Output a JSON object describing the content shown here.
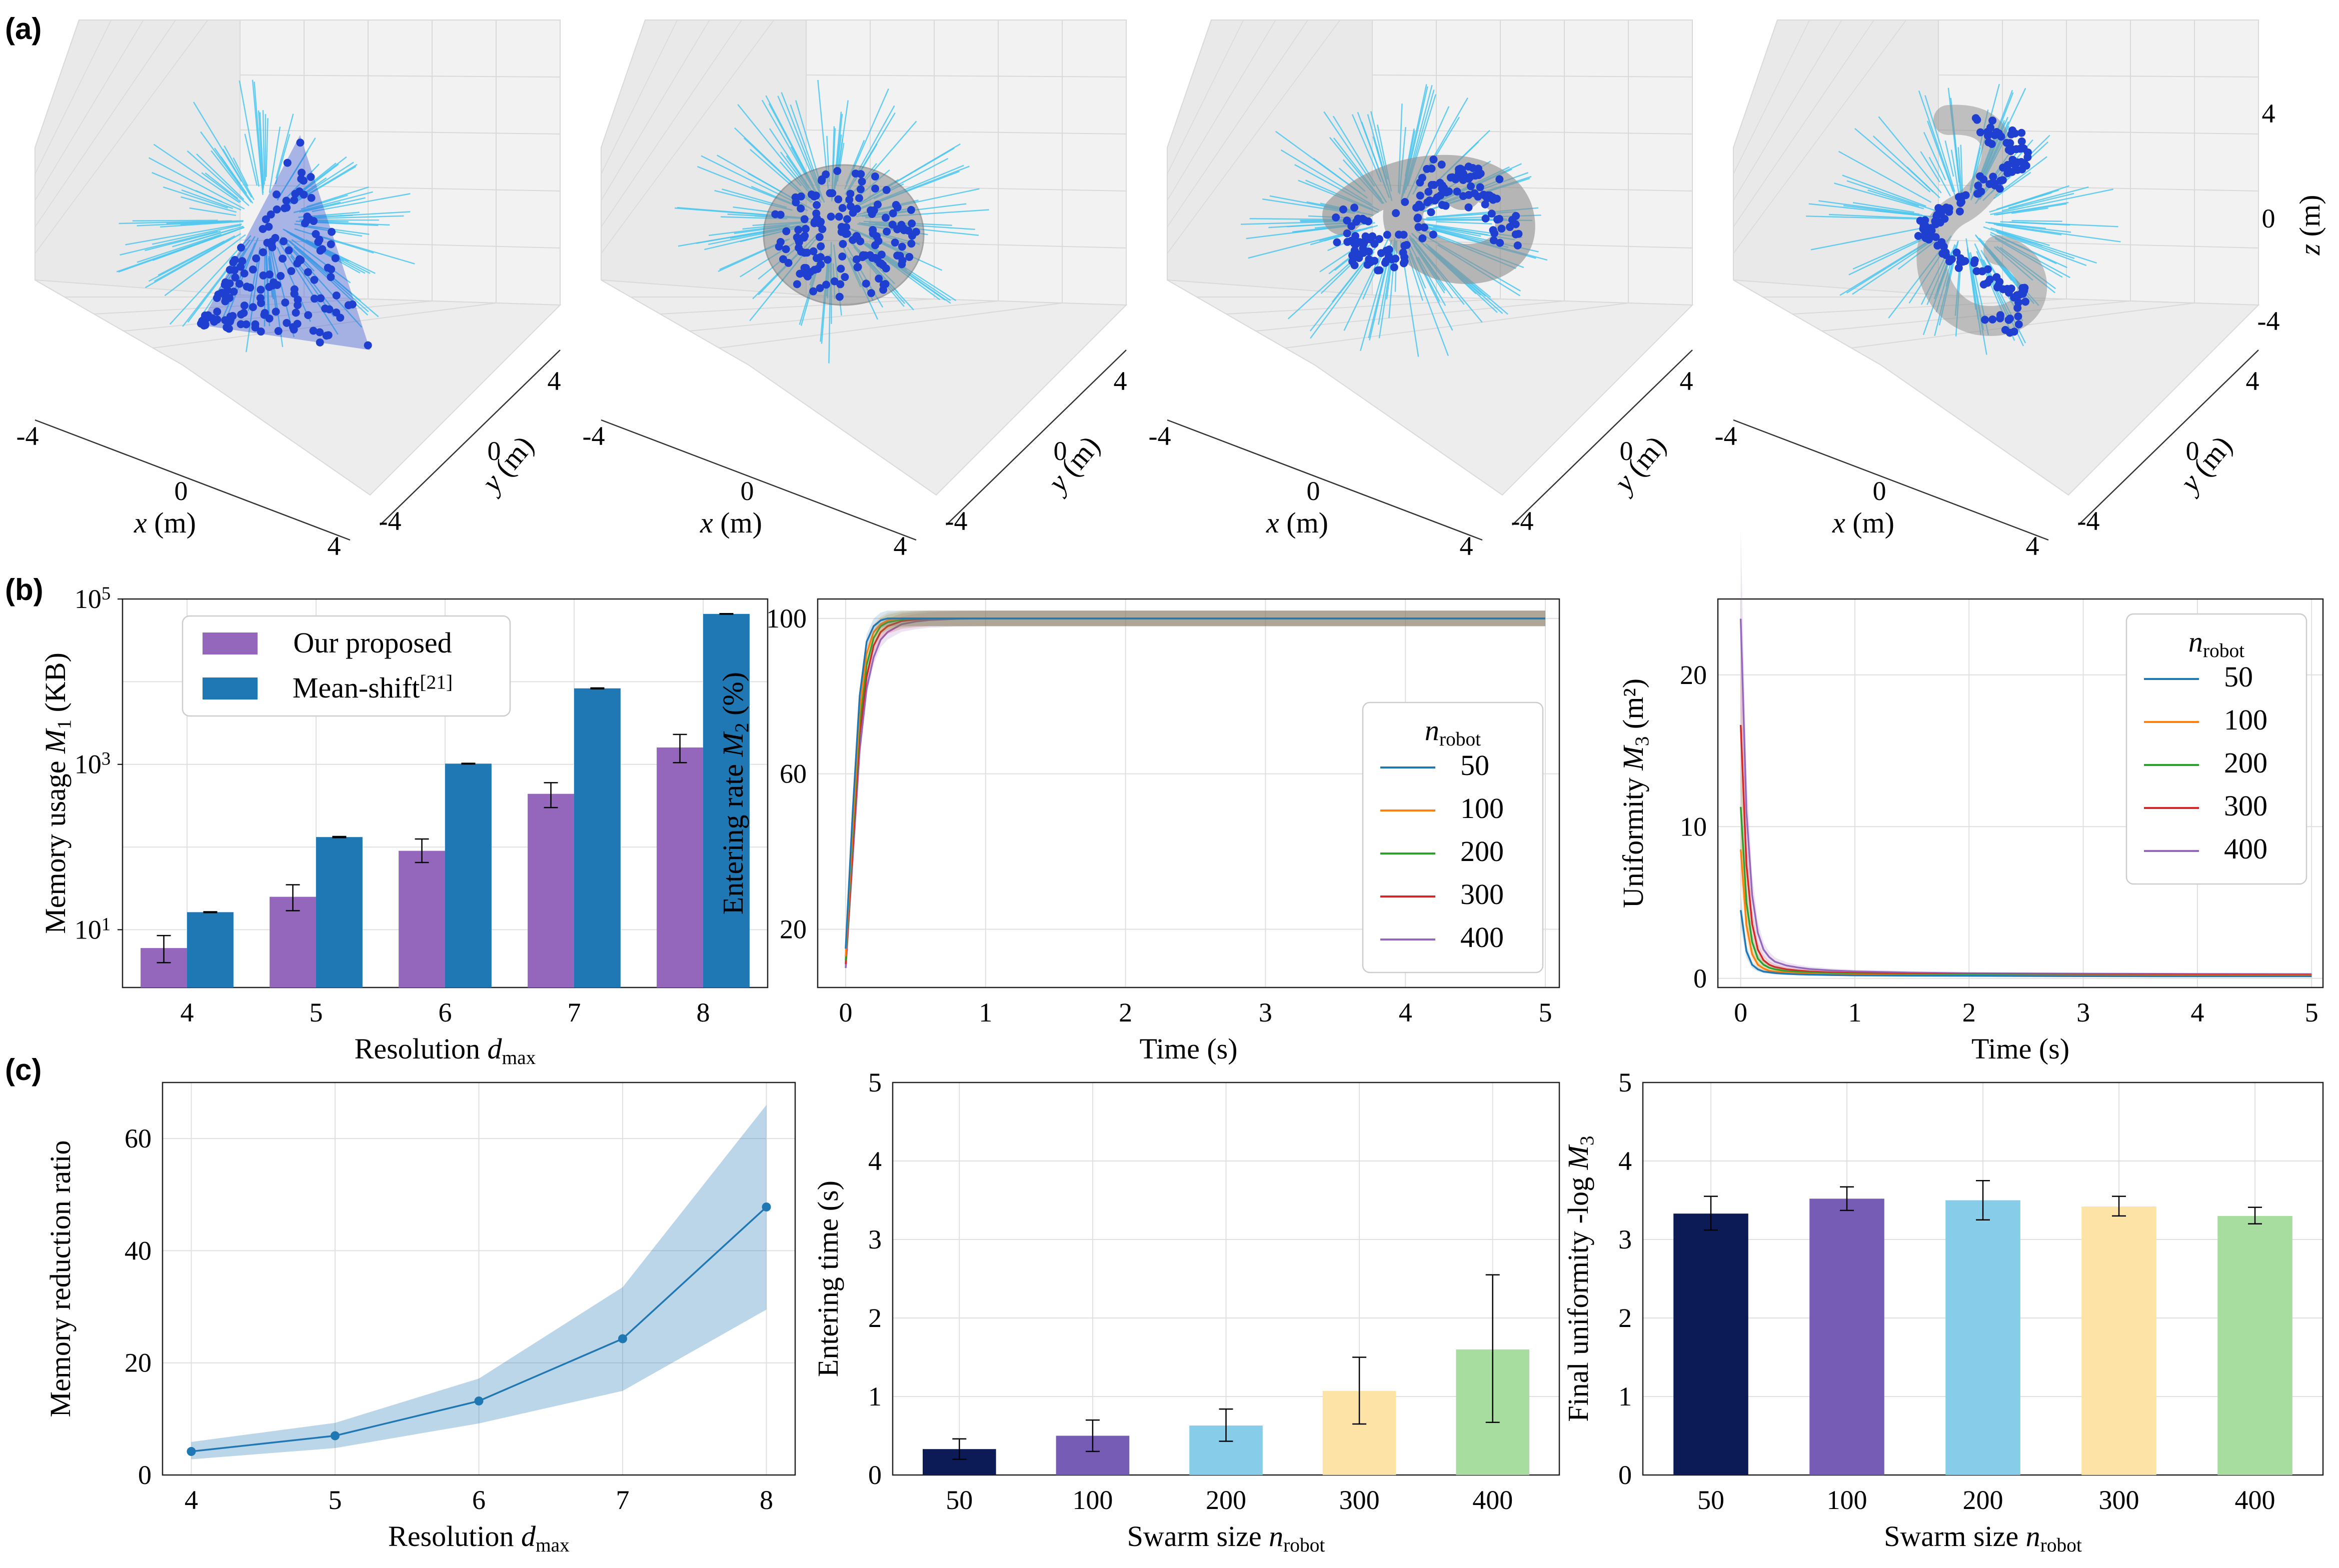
{
  "panel_labels": [
    "(a)",
    "(b)",
    "(c)"
  ],
  "panel_a": {
    "x_label": "x (m)",
    "y_label": "y (m)",
    "z_label": "z (m)",
    "x_ticks": [
      "-4",
      "0",
      "4"
    ],
    "y_ticks": [
      "-4",
      "0",
      "4"
    ],
    "z_ticks": [
      "4",
      "0",
      "-4"
    ],
    "colors": {
      "trajectory": "#4cc7f0",
      "robot": "#1f3fd0",
      "shape": "#8c8c8c"
    },
    "shapes": [
      "pyramid",
      "sphere",
      "trefoil-knot",
      "figure-eight-knot"
    ]
  },
  "chart_data": [
    {
      "id": "memory_usage",
      "type": "bar",
      "categories": [
        "4",
        "5",
        "6",
        "7",
        "8"
      ],
      "series": [
        {
          "name": "Our proposed",
          "color": "#9467bd",
          "values": [
            6,
            25,
            90,
            440,
            1600
          ],
          "err_low": [
            4,
            17,
            65,
            300,
            1050
          ],
          "err_high": [
            8.5,
            35,
            125,
            600,
            2300
          ]
        },
        {
          "name": "Mean-shift",
          "name_sup": "[21]",
          "color": "#1f77b4",
          "values": [
            16.3,
            132,
            1020,
            8300,
            66000
          ],
          "err_low": [
            16.1,
            130,
            1010,
            8200,
            65500
          ],
          "err_high": [
            16.5,
            134,
            1030,
            8400,
            66500
          ]
        }
      ],
      "xlabel": "Resolution",
      "xlabel_sym": "d",
      "xlabel_sub": "max",
      "ylabel": "Memory usage",
      "ylabel_sym": "M",
      "ylabel_sub": "1",
      "ylabel_unit": "(KB)",
      "yscale": "log",
      "ylim": [
        2,
        100000
      ],
      "y_ticks": [
        {
          "base": "10",
          "exp": "1",
          "value": 10
        },
        {
          "base": "10",
          "exp": "3",
          "value": 1000
        },
        {
          "base": "10",
          "exp": "5",
          "value": 100000
        }
      ],
      "legend_loc": "upper left",
      "grid": true
    },
    {
      "id": "entering_rate",
      "type": "line",
      "x": [
        0,
        0.05,
        0.1,
        0.15,
        0.2,
        0.25,
        0.3,
        0.4,
        0.5,
        0.6,
        0.8,
        1.0,
        1.5,
        2.0,
        3.0,
        4.0,
        5.0
      ],
      "series": [
        {
          "name": "50",
          "color": "#1f77b4",
          "values": [
            15,
            50,
            80,
            94,
            98,
            99.5,
            100,
            100,
            100,
            100,
            100,
            100,
            100,
            100,
            100,
            100,
            100
          ]
        },
        {
          "name": "100",
          "color": "#ff7f0e",
          "values": [
            13,
            46,
            76,
            91,
            96.5,
            98.5,
            99.5,
            100,
            100,
            100,
            100,
            100,
            100,
            100,
            100,
            100,
            100
          ]
        },
        {
          "name": "200",
          "color": "#2ca02c",
          "values": [
            12,
            44,
            73,
            88,
            95,
            98,
            99,
            99.7,
            100,
            100,
            100,
            100,
            100,
            100,
            100,
            100,
            100
          ]
        },
        {
          "name": "300",
          "color": "#d62728",
          "values": [
            11,
            41,
            70,
            85,
            93,
            96.5,
            98,
            99.3,
            99.7,
            100,
            100,
            100,
            100,
            100,
            100,
            100,
            100
          ]
        },
        {
          "name": "400",
          "color": "#9467bd",
          "values": [
            10,
            38,
            66,
            82,
            90,
            94.5,
            96.5,
            98.5,
            99.2,
            99.6,
            99.9,
            100,
            100,
            100,
            100,
            100,
            100
          ]
        }
      ],
      "xlabel": "Time (s)",
      "ylabel": "Entering rate",
      "ylabel_sym": "M",
      "ylabel_sub": "2",
      "ylabel_unit": "(%)",
      "xlim": [
        -0.2,
        5.1
      ],
      "ylim": [
        5,
        105
      ],
      "x_ticks": [
        0,
        1,
        2,
        3,
        4,
        5
      ],
      "y_ticks": [
        20,
        60,
        100
      ],
      "legend_title": "n",
      "legend_title_sub": "robot",
      "legend_loc": "lower right",
      "grid": true
    },
    {
      "id": "uniformity",
      "type": "line",
      "x": [
        0,
        0.05,
        0.1,
        0.15,
        0.2,
        0.25,
        0.3,
        0.4,
        0.5,
        0.6,
        0.8,
        1.0,
        1.5,
        2.0,
        3.0,
        4.0,
        5.0
      ],
      "series": [
        {
          "name": "50",
          "color": "#1f77b4",
          "values": [
            4.5,
            1.8,
            0.9,
            0.6,
            0.45,
            0.4,
            0.35,
            0.3,
            0.27,
            0.25,
            0.22,
            0.2,
            0.18,
            0.17,
            0.15,
            0.14,
            0.14
          ]
        },
        {
          "name": "100",
          "color": "#ff7f0e",
          "values": [
            8.5,
            3.5,
            1.6,
            0.9,
            0.65,
            0.5,
            0.45,
            0.38,
            0.33,
            0.3,
            0.26,
            0.24,
            0.21,
            0.2,
            0.18,
            0.17,
            0.17
          ]
        },
        {
          "name": "200",
          "color": "#2ca02c",
          "values": [
            11.3,
            5.0,
            2.4,
            1.3,
            0.9,
            0.7,
            0.6,
            0.48,
            0.42,
            0.38,
            0.32,
            0.29,
            0.25,
            0.23,
            0.21,
            0.2,
            0.2
          ]
        },
        {
          "name": "300",
          "color": "#d62728",
          "values": [
            16.7,
            7.5,
            3.6,
            1.9,
            1.2,
            0.9,
            0.75,
            0.6,
            0.52,
            0.46,
            0.39,
            0.35,
            0.3,
            0.27,
            0.25,
            0.24,
            0.23
          ]
        },
        {
          "name": "400",
          "color": "#9467bd",
          "values": [
            23.7,
            11.0,
            5.5,
            3.0,
            1.9,
            1.4,
            1.1,
            0.85,
            0.72,
            0.62,
            0.52,
            0.46,
            0.38,
            0.34,
            0.31,
            0.29,
            0.28
          ]
        }
      ],
      "xlabel": "Time (s)",
      "ylabel": "Uniformity",
      "ylabel_sym": "M",
      "ylabel_sub": "3",
      "ylabel_unit": "(m²)",
      "xlim": [
        -0.2,
        5.1
      ],
      "ylim": [
        -0.6,
        25
      ],
      "x_ticks": [
        0,
        1,
        2,
        3,
        4,
        5
      ],
      "y_ticks": [
        0,
        10,
        20
      ],
      "legend_title": "n",
      "legend_title_sub": "robot",
      "legend_loc": "upper right",
      "grid": true
    },
    {
      "id": "memory_reduction",
      "type": "line",
      "x": [
        4,
        5,
        6,
        7,
        8
      ],
      "series": [
        {
          "name": "",
          "color": "#1f77b4",
          "values": [
            4.2,
            7.0,
            13.2,
            24.3,
            47.8
          ],
          "band_low": [
            2.8,
            4.8,
            9.2,
            15.0,
            29.5
          ],
          "band_high": [
            5.9,
            9.3,
            17.2,
            33.5,
            66.0
          ]
        }
      ],
      "xlabel": "Resolution",
      "xlabel_sym": "d",
      "xlabel_sub": "max",
      "ylabel": "Memory reduction ratio",
      "xlim": [
        3.8,
        8.2
      ],
      "ylim": [
        0,
        70
      ],
      "x_ticks": [
        4,
        5,
        6,
        7,
        8
      ],
      "y_ticks": [
        0,
        20,
        40,
        60
      ],
      "grid": true
    },
    {
      "id": "entering_time",
      "type": "bar",
      "categories": [
        "50",
        "100",
        "200",
        "300",
        "400"
      ],
      "colors": [
        "#0c1b55",
        "#775cb5",
        "#87cde9",
        "#fde3a6",
        "#a7dea0"
      ],
      "values": [
        0.33,
        0.5,
        0.63,
        1.07,
        1.6
      ],
      "err_low": [
        0.2,
        0.3,
        0.43,
        0.65,
        0.67
      ],
      "err_high": [
        0.46,
        0.7,
        0.84,
        1.5,
        2.55
      ],
      "xlabel": "Swarm size",
      "xlabel_sym": "n",
      "xlabel_sub": "robot",
      "ylabel": "Entering time (s)",
      "ylim": [
        0,
        5
      ],
      "y_ticks": [
        0,
        1,
        2,
        3,
        4,
        5
      ],
      "grid": true
    },
    {
      "id": "final_uniformity",
      "type": "bar",
      "categories": [
        "50",
        "100",
        "200",
        "300",
        "400"
      ],
      "colors": [
        "#0c1b55",
        "#775cb5",
        "#87cde9",
        "#fde3a6",
        "#a7dea0"
      ],
      "values": [
        3.33,
        3.52,
        3.5,
        3.42,
        3.3
      ],
      "err_low": [
        3.12,
        3.37,
        3.25,
        3.3,
        3.2
      ],
      "err_high": [
        3.55,
        3.67,
        3.75,
        3.55,
        3.41
      ],
      "xlabel": "Swarm size",
      "xlabel_sym": "n",
      "xlabel_sub": "robot",
      "ylabel": "Final uniformity -log",
      "ylabel_sym": "M",
      "ylabel_sub": "3",
      "ylim": [
        0,
        5
      ],
      "y_ticks": [
        0,
        1,
        2,
        3,
        4,
        5
      ],
      "grid": true
    }
  ]
}
